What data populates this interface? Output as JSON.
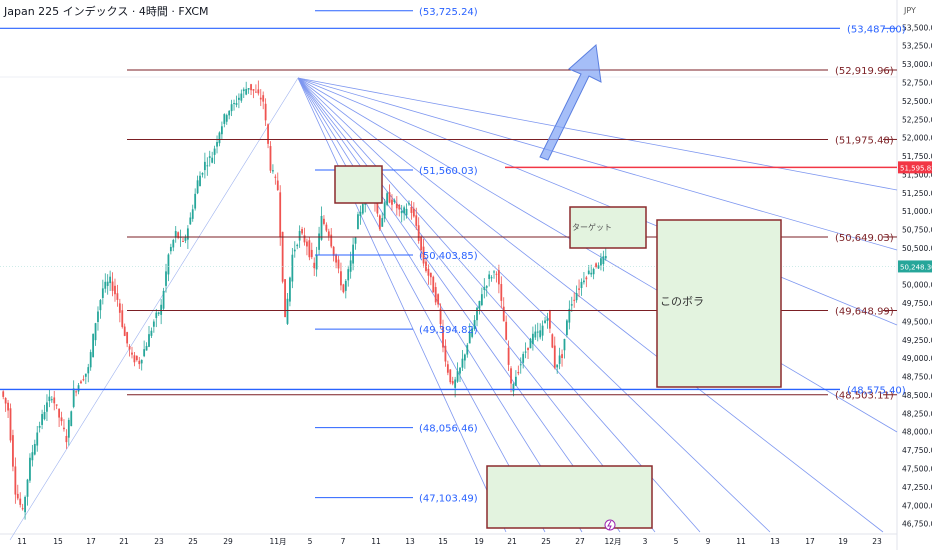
{
  "header": {
    "title": "Japan 225 インデックス · 4時間 · FXCM",
    "currency": "JPY"
  },
  "colors": {
    "candle_up": "#26a69a",
    "candle_down": "#ef5350",
    "fib": "#2962ff",
    "level": "#7b1f24",
    "red_line": "#f23645",
    "fan": "#7e97f0",
    "arrow": "#7fa2f5",
    "box_fill": "#e3f3df",
    "box_border": "#8b2a2d",
    "price_badge_red": "#f23645",
    "price_badge_teal": "#26a69a"
  },
  "chart_data": {
    "type": "candlestick",
    "symbol": "Japan 225",
    "timeframe": "4時間",
    "y_axis": {
      "range": [
        46600,
        53700
      ],
      "ticks": [
        46750,
        47000,
        47250,
        47500,
        47750,
        48000,
        48250,
        48500,
        48750,
        49000,
        49250,
        49500,
        49750,
        50000,
        50250,
        50500,
        50750,
        51000,
        51250,
        51500,
        51750,
        52000,
        52250,
        52500,
        52750,
        53000,
        53250,
        53500
      ],
      "tick_labels": [
        "46,750.00",
        "47,000.00",
        "47,250.00",
        "47,500.00",
        "47,750.00",
        "48,000.00",
        "48,250.00",
        "48,500.00",
        "48,750.00",
        "49,000.00",
        "49,250.00",
        "49,500.00",
        "49,750.00",
        "50,000.00",
        "50,250.00",
        "50,500.00",
        "50,750.00",
        "51,000.00",
        "51,250.00",
        "51,500.00",
        "51,750.00",
        "52,000.00",
        "52,250.00",
        "52,500.00",
        "52,750.00",
        "53,000.00",
        "53,250.00",
        "53,500.00"
      ]
    },
    "x_axis": {
      "tick_labels": [
        "11",
        "15",
        "17",
        "21",
        "23",
        "25",
        "29",
        "11月",
        "5",
        "7",
        "11",
        "13",
        "15",
        "19",
        "21",
        "25",
        "27",
        "12月",
        "3",
        "5",
        "9",
        "11",
        "13",
        "17",
        "19",
        "23"
      ]
    },
    "price_path": [
      48550,
      48300,
      47200,
      46900,
      47600,
      48000,
      48300,
      48500,
      48200,
      47900,
      48550,
      48700,
      48850,
      49500,
      49950,
      50050,
      49800,
      49300,
      49000,
      48950,
      49200,
      49500,
      49700,
      50400,
      50700,
      50550,
      50900,
      51400,
      51650,
      51750,
      52100,
      52350,
      52450,
      52600,
      52700,
      52600,
      52500,
      51600,
      51300,
      49500,
      50400,
      50700,
      50550,
      50200,
      50900,
      50700,
      50300,
      49900,
      50300,
      50900,
      51250,
      51300,
      50800,
      51200,
      51100,
      50950,
      51100,
      50800,
      50300,
      50050,
      49700,
      48950,
      48600,
      48850,
      49200,
      49500,
      49900,
      50100,
      50200,
      49500,
      48600,
      48850,
      49100,
      49300,
      49350,
      49600,
      48900,
      49050,
      49700,
      49900,
      50100,
      50200,
      50300,
      50350
    ],
    "fib_levels": [
      {
        "label": "(53,725.24)",
        "value": 53725.24
      },
      {
        "label": "(51,560.03)",
        "value": 51560.03
      },
      {
        "label": "(50,403.85)",
        "value": 50403.85
      },
      {
        "label": "(49,394.82)",
        "value": 49394.82
      },
      {
        "label": "(48,575.40)",
        "value": 48575.4
      },
      {
        "label": "(48,056.46)",
        "value": 48056.46
      },
      {
        "label": "(47,103.49)",
        "value": 47103.49
      }
    ],
    "levels": [
      {
        "label": "(53,487.00)",
        "value": 53487.0,
        "color": "fib"
      },
      {
        "label": "(52,919.96)",
        "value": 52919.96,
        "color": "level"
      },
      {
        "label": "(51,975.48)",
        "value": 51975.48,
        "color": "level"
      },
      {
        "label": "(50,649.03)",
        "value": 50649.03,
        "color": "level"
      },
      {
        "label": "(49,648.99)",
        "value": 49648.99,
        "color": "level"
      },
      {
        "label": "(48,503.11)",
        "value": 48503.11,
        "color": "level"
      }
    ],
    "red_level": {
      "value": 51595.82,
      "badge": "51,595.82"
    },
    "current_price": {
      "value": 50248.3,
      "badge": "50,248.30"
    },
    "annotations": [
      {
        "text": "ターゲット"
      },
      {
        "text": "このボラ"
      }
    ]
  }
}
